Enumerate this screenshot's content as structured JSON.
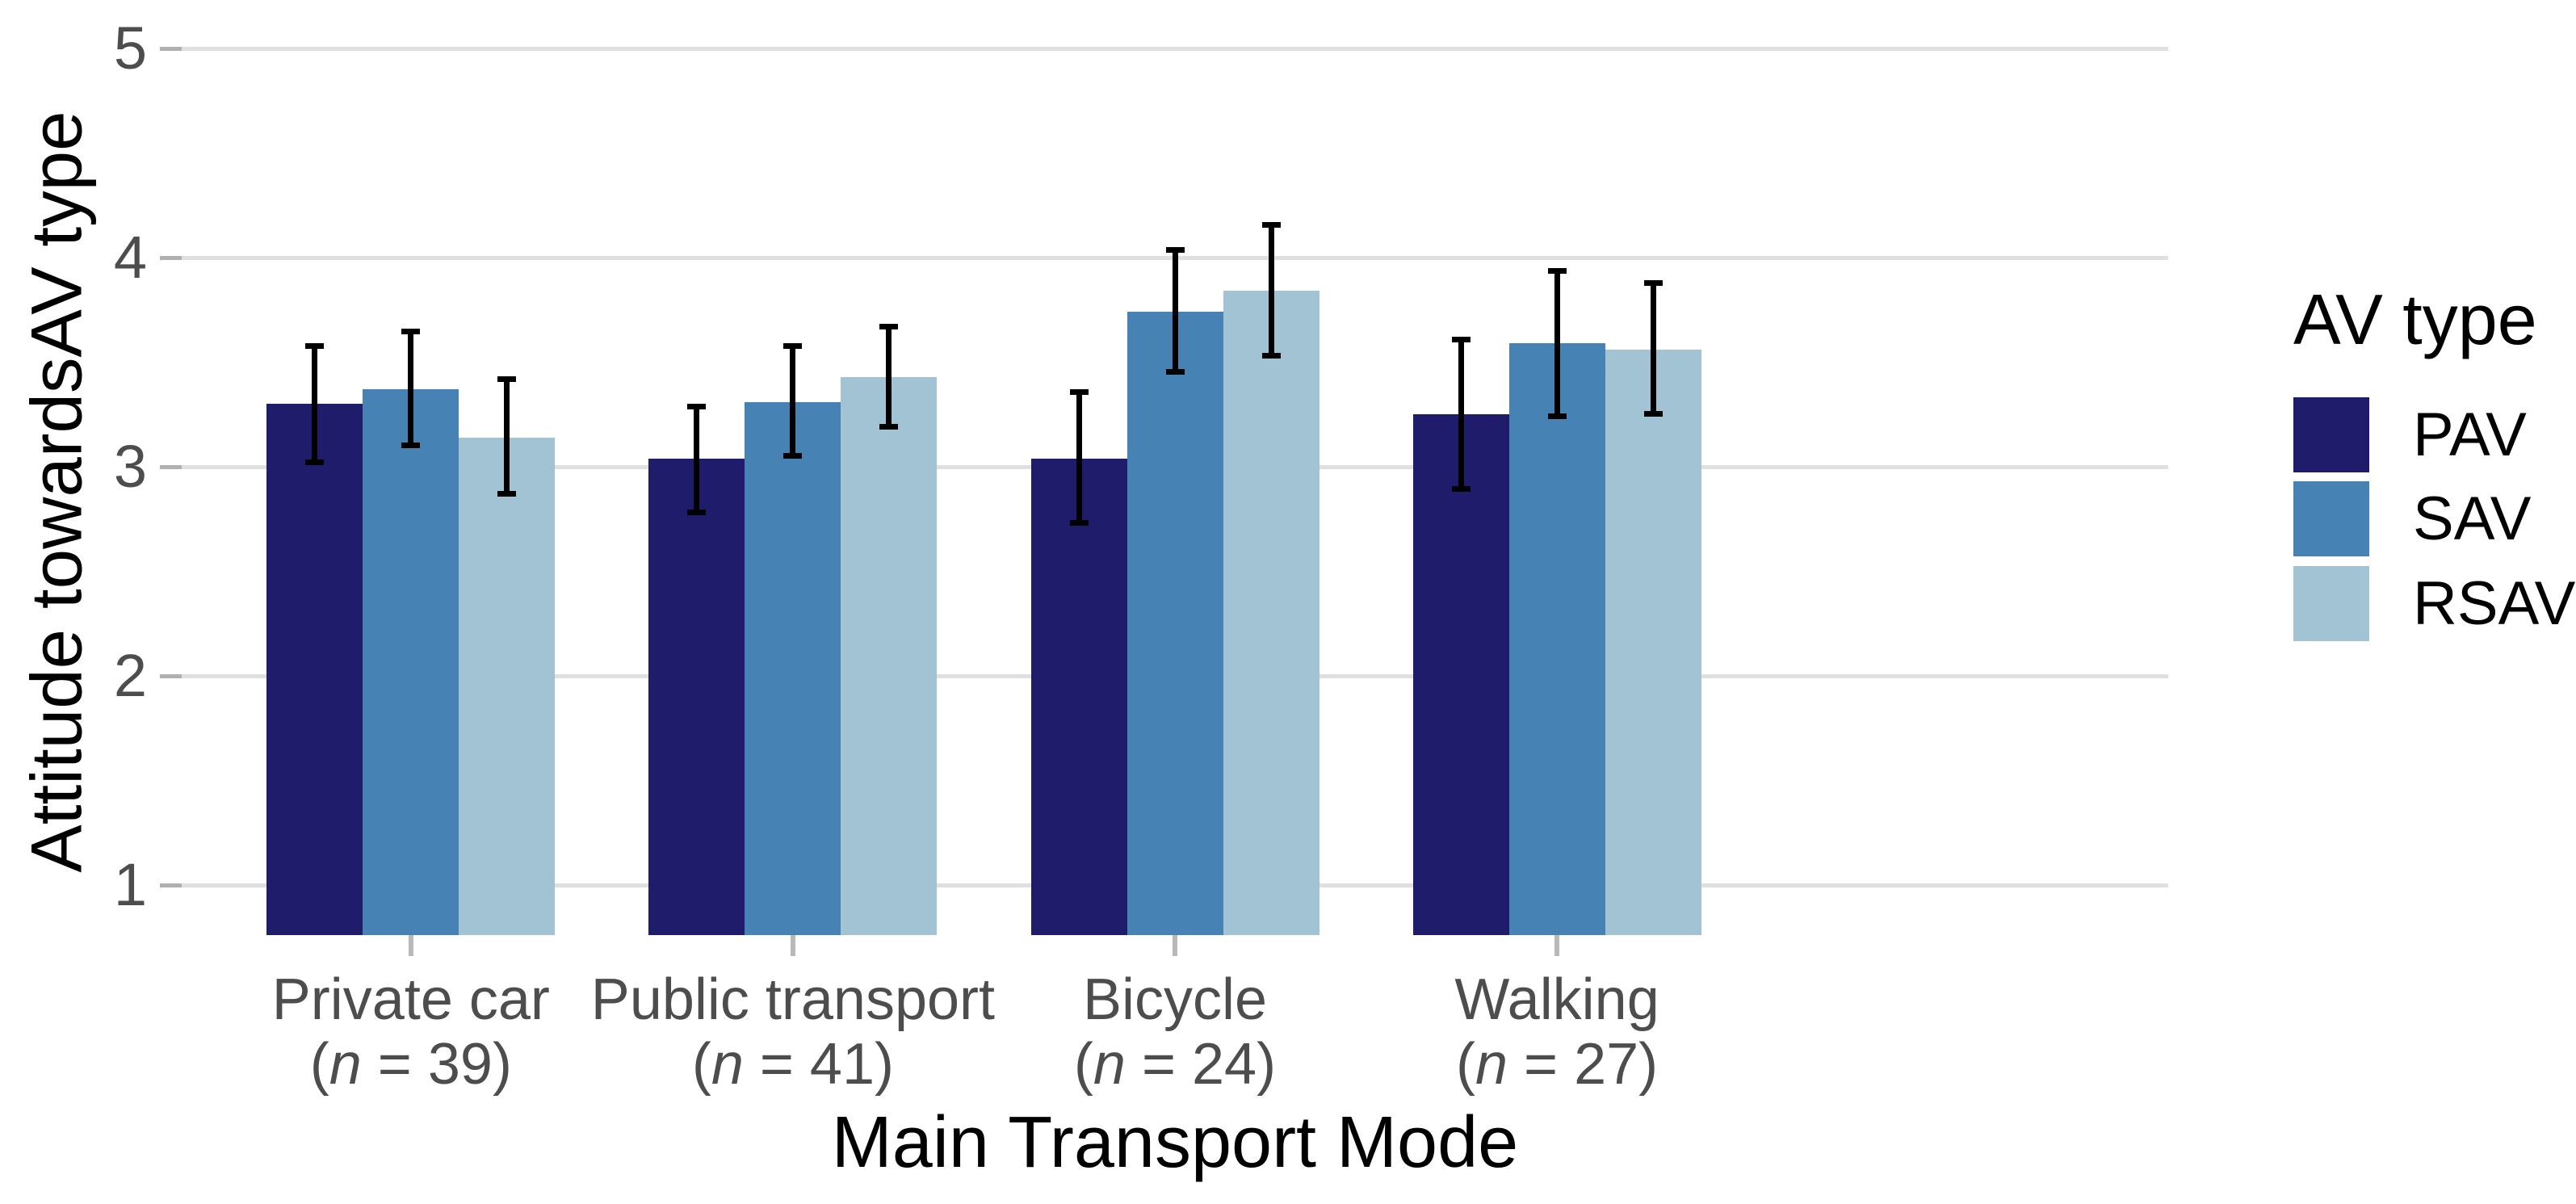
{
  "chart_data": {
    "type": "bar",
    "title": "",
    "xlabel": "Main Transport Mode",
    "ylabel": "Attitude towardsAV type",
    "ylim": [
      1,
      5
    ],
    "yticks": [
      1,
      2,
      3,
      4,
      5
    ],
    "grid": "horizontal-only",
    "legend_position": "right",
    "legend_title": "AV type",
    "n_format": {
      "open": "(",
      "symbol": "n",
      "separator": " = ",
      "close": ")"
    },
    "categories": [
      {
        "label": "Private car",
        "n": 39
      },
      {
        "label": "Public transport",
        "n": 41
      },
      {
        "label": "Bicycle",
        "n": 24
      },
      {
        "label": "Walking",
        "n": 27
      }
    ],
    "series": [
      {
        "name": "PAV",
        "color": "#1F1D6B",
        "values": [
          3.3,
          3.04,
          3.04,
          3.25
        ],
        "ci_low": [
          3.02,
          2.78,
          2.73,
          2.89
        ],
        "ci_high": [
          3.58,
          3.29,
          3.36,
          3.61
        ]
      },
      {
        "name": "SAV",
        "color": "#4682B4",
        "values": [
          3.37,
          3.31,
          3.74,
          3.59
        ],
        "ci_low": [
          3.1,
          3.05,
          3.45,
          3.24
        ],
        "ci_high": [
          3.65,
          3.58,
          4.04,
          3.94
        ]
      },
      {
        "name": "RSAV",
        "color": "#A2C3D4",
        "values": [
          3.14,
          3.43,
          3.84,
          3.56
        ],
        "ci_low": [
          2.87,
          3.19,
          3.53,
          3.25
        ],
        "ci_high": [
          3.42,
          3.67,
          4.16,
          3.88
        ]
      }
    ],
    "style": {
      "background": "#FFFFFF",
      "gridline_color": "#E0E0E0",
      "tick_color": "#B0B0B0",
      "axis_text_color": "#4D4D4D",
      "title_text_color": "#000000",
      "error_bar_color": "#000000"
    }
  }
}
